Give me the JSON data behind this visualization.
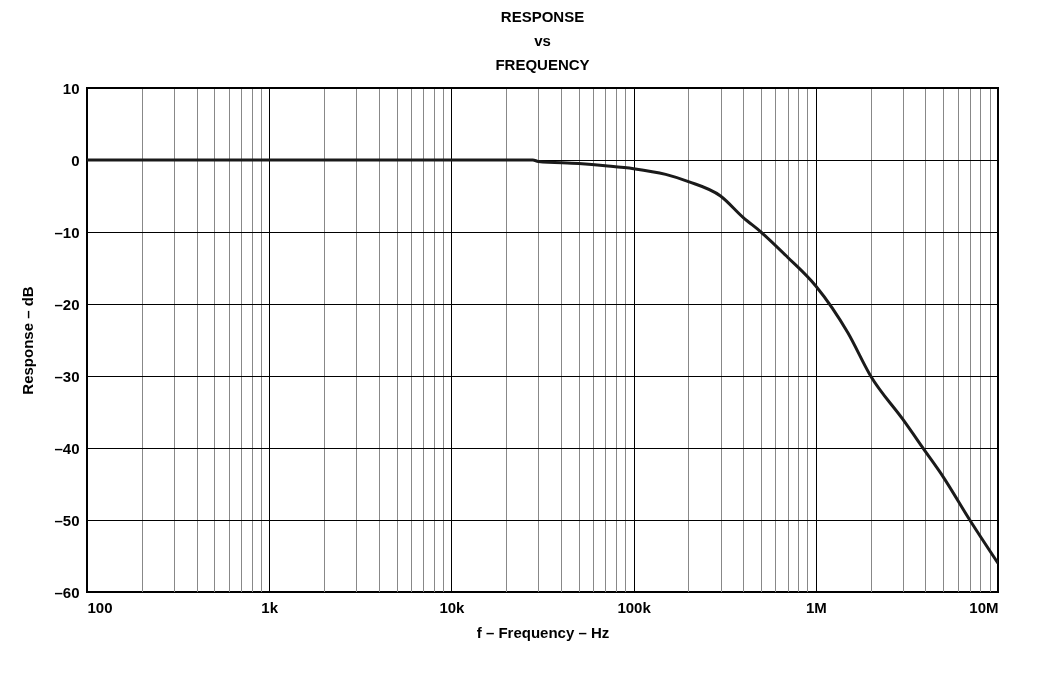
{
  "chart_data": {
    "type": "line",
    "title": "RESPONSE\nvs\nFREQUENCY",
    "xlabel": "f – Frequency – Hz",
    "ylabel": "Response – dB",
    "x": [
      100,
      1000,
      10000,
      28000,
      30000,
      50000,
      70000,
      100000,
      150000,
      200000,
      300000,
      400000,
      500000,
      700000,
      1000000,
      1500000,
      2000000,
      3000000,
      4000000,
      5000000,
      7000000,
      10000000
    ],
    "series": [
      {
        "color": "#1a1a1a",
        "values": [
          0,
          0,
          0,
          0,
          -0.2,
          -0.5,
          -0.8,
          -1.2,
          -2,
          -3,
          -5,
          -8,
          -10,
          -13.5,
          -17.5,
          -24,
          -30,
          -36,
          -40.5,
          -44,
          -50,
          -56
        ]
      }
    ],
    "log": "x",
    "grid": true,
    "marker": "none",
    "line_style": "solid",
    "xlim": [
      100,
      10000000
    ],
    "ylim": [
      -60,
      10
    ],
    "xticks": [
      100,
      {
        "value": 200,
        "label": null
      },
      {
        "value": 300,
        "label": null
      },
      {
        "value": 400,
        "label": null
      },
      {
        "value": 500,
        "label": null
      },
      {
        "value": 600,
        "label": null
      },
      {
        "value": 700,
        "label": null
      },
      {
        "value": 800,
        "label": null
      },
      {
        "value": 900,
        "label": null
      },
      {
        "value": 1000,
        "label": "1k"
      },
      {
        "value": 2000,
        "label": null
      },
      {
        "value": 3000,
        "label": null
      },
      {
        "value": 4000,
        "label": null
      },
      {
        "value": 5000,
        "label": null
      },
      {
        "value": 6000,
        "label": null
      },
      {
        "value": 7000,
        "label": null
      },
      {
        "value": 8000,
        "label": null
      },
      {
        "value": 9000,
        "label": null
      },
      {
        "value": 10000,
        "label": "10k"
      },
      {
        "value": 20000,
        "label": null
      },
      {
        "value": 30000,
        "label": null
      },
      {
        "value": 40000,
        "label": null
      },
      {
        "value": 50000,
        "label": null
      },
      {
        "value": 60000,
        "label": null
      },
      {
        "value": 70000,
        "label": null
      },
      {
        "value": 80000,
        "label": null
      },
      {
        "value": 90000,
        "label": null
      },
      {
        "value": 100000,
        "label": "100k"
      },
      {
        "value": 200000,
        "label": null
      },
      {
        "value": 300000,
        "label": null
      },
      {
        "value": 400000,
        "label": null
      },
      {
        "value": 500000,
        "label": null
      },
      {
        "value": 600000,
        "label": null
      },
      {
        "value": 700000,
        "label": null
      },
      {
        "value": 800000,
        "label": null
      },
      {
        "value": 900000,
        "label": null
      },
      {
        "value": 1000000,
        "label": "1M"
      },
      {
        "value": 2000000,
        "label": null
      },
      {
        "value": 3000000,
        "label": null
      },
      {
        "value": 4000000,
        "label": null
      },
      {
        "value": 5000000,
        "label": null
      },
      {
        "value": 6000000,
        "label": null
      },
      {
        "value": 7000000,
        "label": null
      },
      {
        "value": 8000000,
        "label": null
      },
      {
        "value": 9000000,
        "label": null
      },
      {
        "value": 10000000,
        "label": "10M"
      }
    ],
    "yticks": [
      {
        "value": -60,
        "label": "–60"
      },
      {
        "value": -50,
        "label": "–50"
      },
      {
        "value": -40,
        "label": "–40"
      },
      {
        "value": -30,
        "label": "–30"
      },
      {
        "value": -20,
        "label": "–20"
      },
      {
        "value": -10,
        "label": "–10"
      },
      0,
      10
    ]
  }
}
